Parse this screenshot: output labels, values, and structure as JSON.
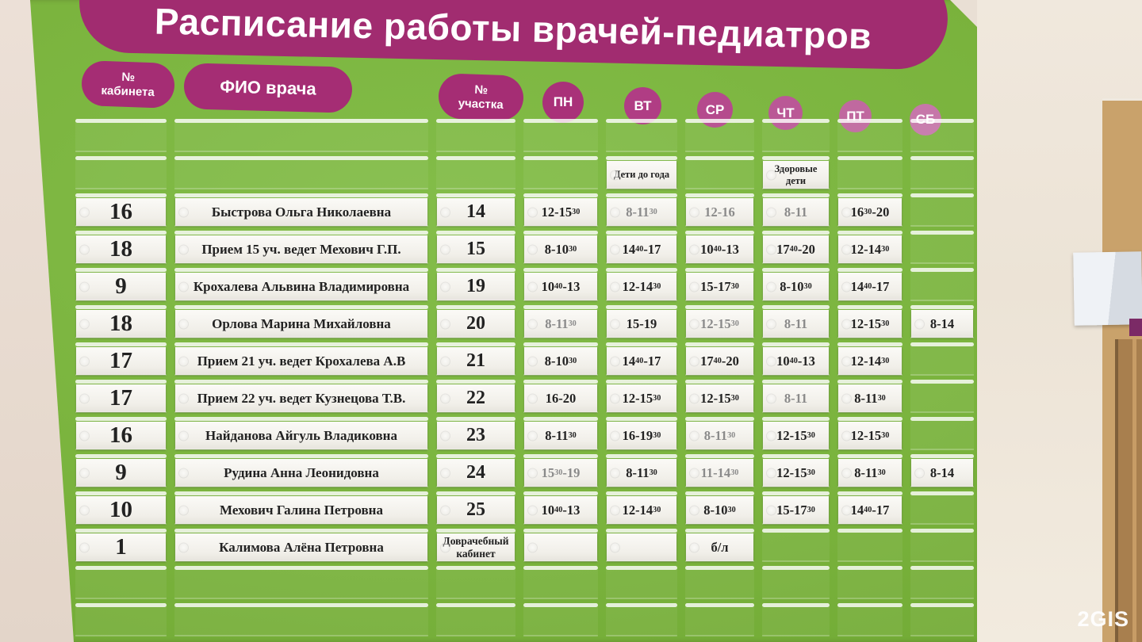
{
  "title": "Расписание работы врачей-педиатров",
  "watermark": "2GIS",
  "header": {
    "cabinet": {
      "line1": "№",
      "line2": "кабинета"
    },
    "fio": "ФИО врача",
    "uchastok": {
      "line1": "№",
      "line2": "участка"
    },
    "days": [
      "ПН",
      "ВТ",
      "СР",
      "ЧТ",
      "ПТ",
      "СБ"
    ]
  },
  "notes": [
    {
      "day": "ВТ",
      "text": "Дети до года"
    },
    {
      "day": "ЧТ",
      "text": "Здоровые дети"
    }
  ],
  "rows": [
    {
      "cabinet": "16",
      "fio": "Быстрова Ольга Николаевна",
      "uchastok": "14",
      "times": [
        "12-15^30",
        {
          "t": "8-11^30",
          "faded": true
        },
        {
          "t": "12-16",
          "faded": true
        },
        {
          "t": "8-11",
          "faded": true
        },
        "16^30-20",
        null
      ]
    },
    {
      "cabinet": "18",
      "fio": "Прием 15 уч. ведет Мехович Г.П.",
      "uchastok": "15",
      "times": [
        "8-10^30",
        "14^40-17",
        "10^40-13",
        "17^40-20",
        "12-14^30",
        null
      ]
    },
    {
      "cabinet": "9",
      "fio": "Крохалева Альвина Владимировна",
      "uchastok": "19",
      "times": [
        "10^40-13",
        "12-14^30",
        "15-17^30",
        "8-10^30",
        "14^40-17",
        null
      ]
    },
    {
      "cabinet": "18",
      "fio": "Орлова Марина Михайловна",
      "uchastok": "20",
      "times": [
        {
          "t": "8-11^30",
          "faded": true
        },
        "15-19",
        {
          "t": "12-15^30",
          "faded": true
        },
        {
          "t": "8-11",
          "faded": true
        },
        "12-15^30",
        "8-14"
      ]
    },
    {
      "cabinet": "17",
      "fio": "Прием 21 уч. ведет Крохалева А.В",
      "uchastok": "21",
      "times": [
        "8-10^30",
        "14^40-17",
        "17^40-20",
        "10^40-13",
        "12-14^30",
        null
      ]
    },
    {
      "cabinet": "17",
      "fio": "Прием 22 уч. ведет Кузнецова Т.В.",
      "uchastok": "22",
      "times": [
        "16-20",
        "12-15^30",
        "12-15^30",
        {
          "t": "8-11",
          "faded": true
        },
        "8-11^30",
        null
      ]
    },
    {
      "cabinet": "16",
      "fio": "Найданова Айгуль Владиковна",
      "uchastok": "23",
      "times": [
        "8-11^30",
        "16-19^30",
        {
          "t": "8-11^30",
          "faded": true
        },
        "12-15^30",
        "12-15^30",
        null
      ]
    },
    {
      "cabinet": "9",
      "fio": "Рудина Анна Леонидовна",
      "uchastok": "24",
      "times": [
        {
          "t": "15^30-19",
          "faded": true
        },
        "8-11^30",
        {
          "t": "11-14^30",
          "faded": true
        },
        "12-15^30",
        "8-11^30",
        "8-14"
      ]
    },
    {
      "cabinet": "10",
      "fio": "Мехович Галина Петровна",
      "uchastok": "25",
      "times": [
        "10^40-13",
        "12-14^30",
        "8-10^30",
        "15-17^30",
        "14^40-17",
        null
      ]
    },
    {
      "cabinet": "1",
      "fio": "Калимова Алёна Петровна",
      "uchastok": "Доврачебный кабинет",
      "times": [
        "",
        "",
        "б/л",
        null,
        null,
        null
      ]
    }
  ],
  "colors": {
    "board_green": "#7ab33d",
    "banner_magenta": "#a12c70",
    "day_circle_pink": "#b03d84",
    "card_white": "#f3f1ec",
    "wall_beige": "#ece3d6",
    "door_wood": "#a87f4e"
  }
}
